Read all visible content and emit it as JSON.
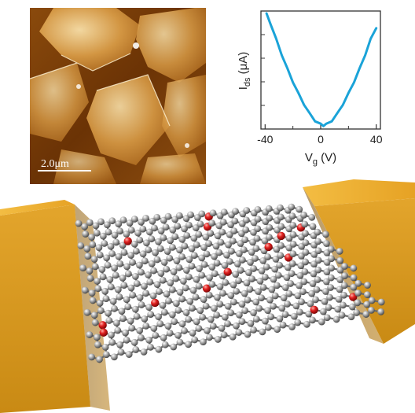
{
  "afm_image": {
    "scale_bar_label": "2.0μm",
    "colors": {
      "dark": "#5a2a00",
      "mid": "#b8741f",
      "light": "#f6d9a0"
    }
  },
  "chart_data": {
    "type": "line",
    "title": "",
    "xlabel": "V_g (V)",
    "ylabel": "I_ds (μA)",
    "xlabel_parts": {
      "main": "V",
      "sub": "g",
      "unit": " (V)"
    },
    "ylabel_parts": {
      "main": "I",
      "sub": "ds",
      "unit": " (μA)"
    },
    "xlim": [
      -43,
      43
    ],
    "ylim": [
      0,
      1
    ],
    "x_ticks": [
      -40,
      0,
      40
    ],
    "x_tick_labels": [
      "-40",
      "0",
      "40"
    ],
    "show_y_tick_labels": false,
    "grid": false,
    "series": [
      {
        "color": "#1aa3d8",
        "x": [
          -39,
          -36,
          -32,
          -28,
          -24,
          -20,
          -16,
          -12,
          -8,
          -4,
          0,
          2,
          4,
          8,
          12,
          16,
          20,
          24,
          28,
          32,
          36,
          40
        ],
        "y": [
          0.98,
          0.89,
          0.76,
          0.63,
          0.51,
          0.4,
          0.3,
          0.21,
          0.13,
          0.07,
          0.04,
          0.03,
          0.04,
          0.07,
          0.13,
          0.21,
          0.3,
          0.4,
          0.51,
          0.63,
          0.76,
          0.86
        ]
      }
    ]
  },
  "device": {
    "electrode_color": "#e9a928",
    "carbon_color": "#9a9a9a",
    "oxygen_color": "#e0201f"
  }
}
